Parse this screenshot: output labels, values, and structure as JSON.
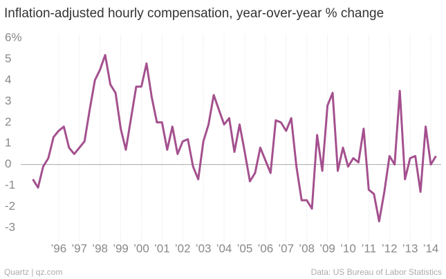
{
  "chart_data": {
    "type": "line",
    "title": "Inflation-adjusted hourly compensation, year-over-year % change",
    "credit": "Quartz | qz.com",
    "source": "Data: US Bureau of Labor Statistics",
    "x": [
      1994.75,
      1995,
      1995.25,
      1995.5,
      1995.75,
      1996,
      1996.25,
      1996.5,
      1996.75,
      1997,
      1997.25,
      1997.5,
      1997.75,
      1998,
      1998.25,
      1998.5,
      1998.75,
      1999,
      1999.25,
      1999.5,
      1999.75,
      2000,
      2000.25,
      2000.5,
      2000.75,
      2001,
      2001.25,
      2001.5,
      2001.75,
      2002,
      2002.25,
      2002.5,
      2002.75,
      2003,
      2003.25,
      2003.5,
      2003.75,
      2004,
      2004.25,
      2004.5,
      2004.75,
      2005,
      2005.25,
      2005.5,
      2005.75,
      2006,
      2006.25,
      2006.5,
      2006.75,
      2007,
      2007.25,
      2007.5,
      2007.75,
      2008,
      2008.25,
      2008.5,
      2008.75,
      2009,
      2009.25,
      2009.5,
      2009.75,
      2010,
      2010.25,
      2010.5,
      2010.75,
      2011,
      2011.25,
      2011.5,
      2011.75,
      2012,
      2012.25,
      2012.5,
      2012.75,
      2013,
      2013.25,
      2013.5,
      2013.75,
      2014,
      2014.25
    ],
    "series": [
      {
        "name": "Year-over-year % change",
        "color": "#a4508e",
        "values": [
          -0.7,
          -1.1,
          -0.1,
          0.3,
          1.3,
          1.6,
          1.8,
          0.8,
          0.5,
          0.8,
          1.1,
          2.6,
          4.0,
          4.5,
          5.2,
          3.8,
          3.4,
          1.7,
          0.7,
          2.2,
          3.7,
          3.7,
          4.8,
          3.2,
          2.0,
          2.0,
          0.7,
          1.8,
          0.5,
          1.1,
          1.2,
          -0.1,
          -0.7,
          1.1,
          1.9,
          3.3,
          2.6,
          1.9,
          2.2,
          0.6,
          1.9,
          0.6,
          -0.8,
          -0.4,
          0.8,
          0.2,
          -0.4,
          2.1,
          2.0,
          1.6,
          2.2,
          -0.1,
          -1.7,
          -1.7,
          -2.1,
          1.4,
          -0.3,
          2.8,
          3.4,
          -0.3,
          0.8,
          -0.1,
          0.3,
          0.1,
          1.7,
          -1.2,
          -1.4,
          -2.7,
          -1.3,
          0.4,
          0.0,
          3.5,
          -0.7,
          0.3,
          0.4,
          -1.3,
          1.8,
          0.0,
          0.4
        ]
      }
    ],
    "xlim": [
      1994.5,
      2014.5
    ],
    "xticks": [
      {
        "value": 1996,
        "label": "’96"
      },
      {
        "value": 1997,
        "label": "’97"
      },
      {
        "value": 1998,
        "label": "’98"
      },
      {
        "value": 1999,
        "label": "’99"
      },
      {
        "value": 2000,
        "label": "’00"
      },
      {
        "value": 2001,
        "label": "’01"
      },
      {
        "value": 2002,
        "label": "’02"
      },
      {
        "value": 2003,
        "label": "’03"
      },
      {
        "value": 2004,
        "label": "’04"
      },
      {
        "value": 2005,
        "label": "’05"
      },
      {
        "value": 2006,
        "label": "’06"
      },
      {
        "value": 2007,
        "label": "’07"
      },
      {
        "value": 2008,
        "label": "’08"
      },
      {
        "value": 2009,
        "label": "’09"
      },
      {
        "value": 2010,
        "label": "’10"
      },
      {
        "value": 2011,
        "label": "’11"
      },
      {
        "value": 2012,
        "label": "’12"
      },
      {
        "value": 2013,
        "label": "’13"
      },
      {
        "value": 2014,
        "label": "’14"
      }
    ],
    "ylim": [
      -3.5,
      6.5
    ],
    "yticks": [
      {
        "value": 6,
        "label": "6%"
      },
      5,
      4,
      3,
      2,
      1,
      0,
      -1,
      -2,
      -3
    ],
    "grid": true
  }
}
